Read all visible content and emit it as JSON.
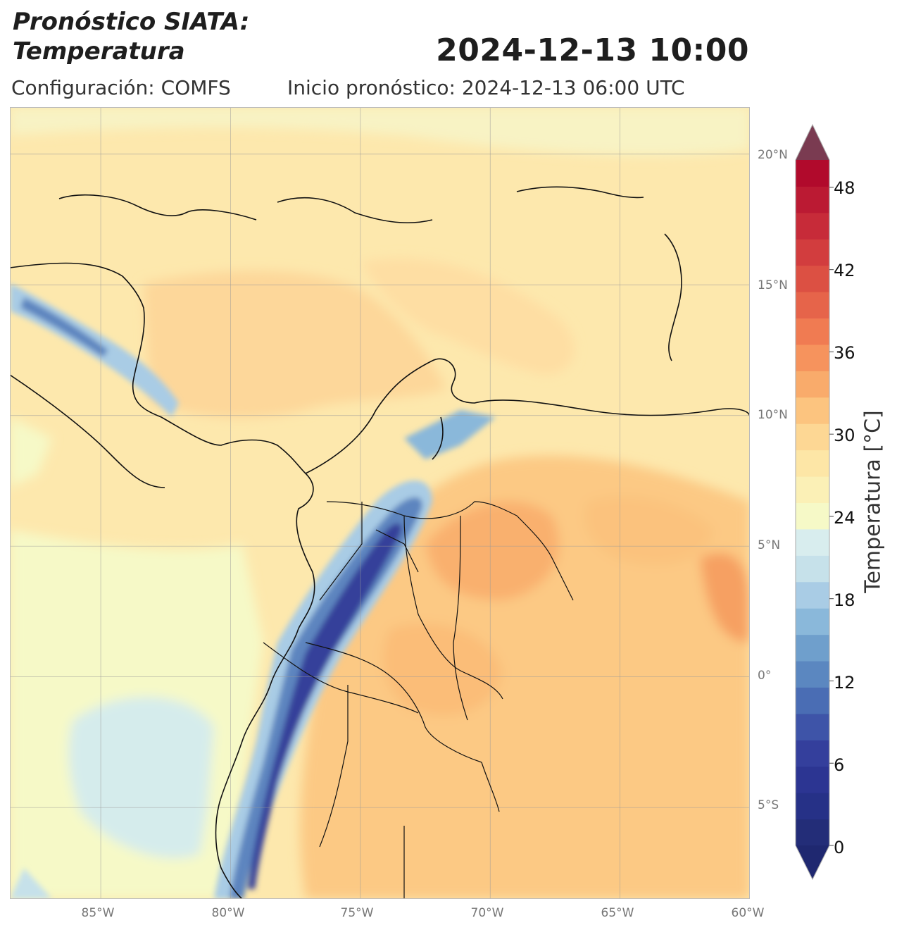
{
  "header": {
    "title_line1": "Pronóstico SIATA:",
    "title_line2": "Temperatura",
    "datetime": "2024-12-13 10:00",
    "config": "Configuración: COMFS",
    "init": "Inicio pronóstico: 2024-12-13 06:00 UTC"
  },
  "map": {
    "lon_range": [
      -88.5,
      -60.0
    ],
    "lat_range": [
      -8.5,
      21.8
    ],
    "lon_ticks": [
      {
        "label": "85°W",
        "value": -85
      },
      {
        "label": "80°W",
        "value": -80
      },
      {
        "label": "75°W",
        "value": -75
      },
      {
        "label": "70°W",
        "value": -70
      },
      {
        "label": "65°W",
        "value": -65
      },
      {
        "label": "60°W",
        "value": -60
      }
    ],
    "lat_ticks": [
      {
        "label": "20°N",
        "value": 20
      },
      {
        "label": "15°N",
        "value": 15
      },
      {
        "label": "10°N",
        "value": 10
      },
      {
        "label": "5°N",
        "value": 5
      },
      {
        "label": "0°",
        "value": 0
      },
      {
        "label": "5°S",
        "value": -5
      }
    ]
  },
  "colorbar": {
    "title": "Temperatura [°C]",
    "min": 0,
    "max": 50,
    "step": 2,
    "tick_labels": [
      "0",
      "6",
      "12",
      "18",
      "24",
      "30",
      "36",
      "42",
      "48"
    ],
    "tick_values": [
      0,
      6,
      12,
      18,
      24,
      30,
      36,
      42,
      48
    ],
    "colors": [
      "#232d78",
      "#263187",
      "#2c3592",
      "#343f9c",
      "#3e54a8",
      "#4a6db4",
      "#5b87c0",
      "#6f9fcc",
      "#8ab8da",
      "#a9cce5",
      "#c6e1ea",
      "#d8edee",
      "#f6f9c7",
      "#fbf0b6",
      "#fde6a6",
      "#fdd794",
      "#fcc47f",
      "#f9ab6b",
      "#f6935d",
      "#f07b52",
      "#e6644a",
      "#dc5043",
      "#d23d3e",
      "#c72b39",
      "#bb1a33",
      "#b10a2c"
    ],
    "over_color": "#7a3b51",
    "under_color": "#1f2870"
  }
}
